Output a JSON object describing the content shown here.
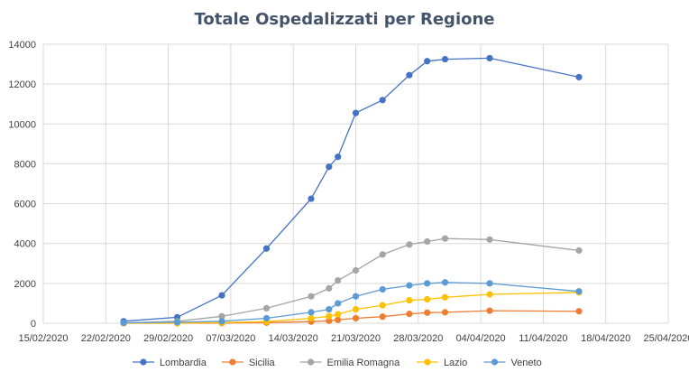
{
  "chart_data": {
    "type": "scatter",
    "title": "Totale Ospedalizzati per Regione",
    "xlabel": "",
    "ylabel": "",
    "ylim": [
      0,
      14000
    ],
    "yticks": [
      0,
      2000,
      4000,
      6000,
      8000,
      10000,
      12000,
      14000
    ],
    "xlim": [
      "2020-02-15",
      "2020-04-25"
    ],
    "xticks": [
      {
        "date": "2020-02-15",
        "label": "15/02/2020"
      },
      {
        "date": "2020-02-22",
        "label": "22/02/2020"
      },
      {
        "date": "2020-02-29",
        "label": "29/02/2020"
      },
      {
        "date": "2020-03-07",
        "label": "07/03/2020"
      },
      {
        "date": "2020-03-14",
        "label": "14/03/2020"
      },
      {
        "date": "2020-03-21",
        "label": "21/03/2020"
      },
      {
        "date": "2020-03-28",
        "label": "28/03/2020"
      },
      {
        "date": "2020-04-04",
        "label": "04/04/2020"
      },
      {
        "date": "2020-04-11",
        "label": "11/04/2020"
      },
      {
        "date": "2020-04-18",
        "label": "18/04/2020"
      },
      {
        "date": "2020-04-25",
        "label": "25/04/2020"
      }
    ],
    "grid": "vertical-and-horizontal",
    "legend": "bottom",
    "series": [
      {
        "name": "Lombardia",
        "color": "#4472C4",
        "points": [
          [
            "2020-02-24",
            100
          ],
          [
            "2020-03-01",
            300
          ],
          [
            "2020-03-06",
            1400
          ],
          [
            "2020-03-11",
            3750
          ],
          [
            "2020-03-16",
            6250
          ],
          [
            "2020-03-18",
            7850
          ],
          [
            "2020-03-19",
            8350
          ],
          [
            "2020-03-21",
            10550
          ],
          [
            "2020-03-24",
            11200
          ],
          [
            "2020-03-27",
            12450
          ],
          [
            "2020-03-29",
            13150
          ],
          [
            "2020-03-31",
            13250
          ],
          [
            "2020-04-05",
            13300
          ],
          [
            "2020-04-15",
            12350
          ]
        ]
      },
      {
        "name": "Sicilia",
        "color": "#ED7D31",
        "points": [
          [
            "2020-02-24",
            0
          ],
          [
            "2020-03-01",
            0
          ],
          [
            "2020-03-06",
            10
          ],
          [
            "2020-03-11",
            30
          ],
          [
            "2020-03-16",
            80
          ],
          [
            "2020-03-18",
            120
          ],
          [
            "2020-03-19",
            170
          ],
          [
            "2020-03-21",
            250
          ],
          [
            "2020-03-24",
            330
          ],
          [
            "2020-03-27",
            470
          ],
          [
            "2020-03-29",
            530
          ],
          [
            "2020-03-31",
            550
          ],
          [
            "2020-04-05",
            630
          ],
          [
            "2020-04-15",
            600
          ]
        ]
      },
      {
        "name": "Emilia Romagna",
        "color": "#A5A5A5",
        "points": [
          [
            "2020-02-24",
            20
          ],
          [
            "2020-03-01",
            100
          ],
          [
            "2020-03-06",
            350
          ],
          [
            "2020-03-11",
            750
          ],
          [
            "2020-03-16",
            1350
          ],
          [
            "2020-03-18",
            1750
          ],
          [
            "2020-03-19",
            2150
          ],
          [
            "2020-03-21",
            2650
          ],
          [
            "2020-03-24",
            3450
          ],
          [
            "2020-03-27",
            3950
          ],
          [
            "2020-03-29",
            4100
          ],
          [
            "2020-03-31",
            4250
          ],
          [
            "2020-04-05",
            4200
          ],
          [
            "2020-04-15",
            3650
          ]
        ]
      },
      {
        "name": "Lazio",
        "color": "#FFC000",
        "points": [
          [
            "2020-02-24",
            0
          ],
          [
            "2020-03-01",
            10
          ],
          [
            "2020-03-06",
            30
          ],
          [
            "2020-03-11",
            80
          ],
          [
            "2020-03-16",
            250
          ],
          [
            "2020-03-18",
            350
          ],
          [
            "2020-03-19",
            450
          ],
          [
            "2020-03-21",
            700
          ],
          [
            "2020-03-24",
            900
          ],
          [
            "2020-03-27",
            1150
          ],
          [
            "2020-03-29",
            1200
          ],
          [
            "2020-03-31",
            1300
          ],
          [
            "2020-04-05",
            1450
          ],
          [
            "2020-04-15",
            1550
          ]
        ]
      },
      {
        "name": "Veneto",
        "color": "#5B9BD5",
        "points": [
          [
            "2020-02-24",
            20
          ],
          [
            "2020-03-01",
            50
          ],
          [
            "2020-03-06",
            100
          ],
          [
            "2020-03-11",
            250
          ],
          [
            "2020-03-16",
            550
          ],
          [
            "2020-03-18",
            700
          ],
          [
            "2020-03-19",
            1000
          ],
          [
            "2020-03-21",
            1350
          ],
          [
            "2020-03-24",
            1700
          ],
          [
            "2020-03-27",
            1900
          ],
          [
            "2020-03-29",
            2000
          ],
          [
            "2020-03-31",
            2050
          ],
          [
            "2020-04-05",
            2000
          ],
          [
            "2020-04-15",
            1600
          ]
        ]
      }
    ]
  }
}
